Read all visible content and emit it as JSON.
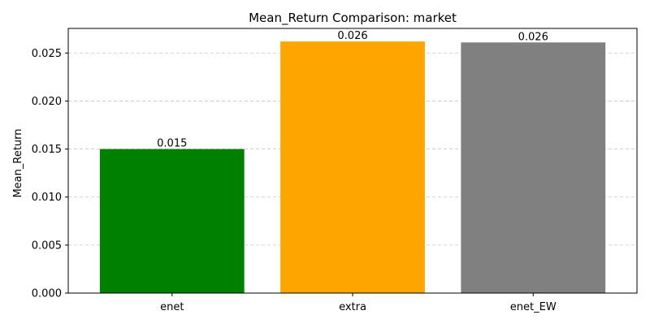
{
  "chart_data": {
    "type": "bar",
    "title": "Mean_Return Comparison: market",
    "xlabel": "",
    "ylabel": "Mean_Return",
    "categories": [
      "enet",
      "extra",
      "enet_EW"
    ],
    "values": [
      0.015,
      0.0262,
      0.0261
    ],
    "value_labels": [
      "0.015",
      "0.026",
      "0.026"
    ],
    "colors": [
      "#008000",
      "#ffa500",
      "#808080"
    ],
    "ylim": [
      0,
      0.02756
    ],
    "yticks": [
      0.0,
      0.005,
      0.01,
      0.015,
      0.02,
      0.025
    ],
    "ytick_labels": [
      "0.000",
      "0.005",
      "0.010",
      "0.015",
      "0.020",
      "0.025"
    ],
    "grid": "y-dashed",
    "legend": "none"
  }
}
